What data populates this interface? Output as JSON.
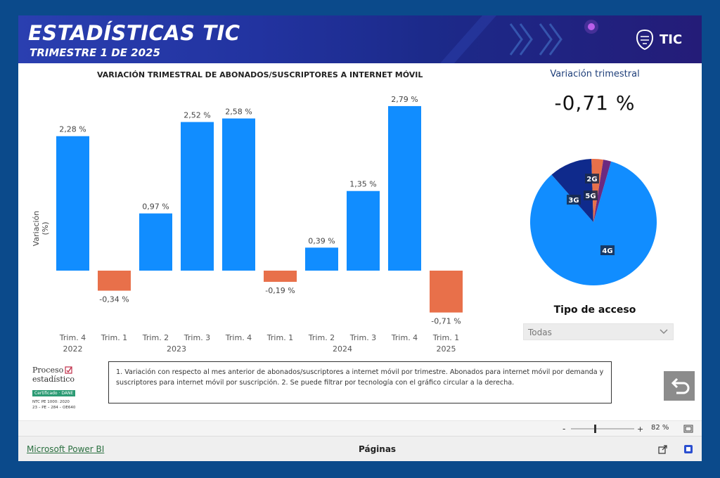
{
  "header": {
    "title": "ESTADÍSTICAS TIC",
    "subtitle": "TRIMESTRE 1 DE 2025",
    "logo_text": "TIC"
  },
  "chart_data": {
    "type": "bar",
    "title": "VARIACIÓN TRIMESTRAL DE ABONADOS/SUSCRIPTORES A INTERNET MÓVIL",
    "ylabel": "Variación (%)",
    "xlabel": "",
    "categories": [
      "Trim. 4",
      "Trim. 1",
      "Trim. 2",
      "Trim. 3",
      "Trim. 4",
      "Trim. 1",
      "Trim. 2",
      "Trim. 3",
      "Trim. 4",
      "Trim. 1"
    ],
    "years": [
      {
        "label": "2022",
        "start": 0,
        "end": 0
      },
      {
        "label": "2023",
        "start": 1,
        "end": 4
      },
      {
        "label": "2024",
        "start": 5,
        "end": 8
      },
      {
        "label": "2025",
        "start": 9,
        "end": 9
      }
    ],
    "values": [
      2.28,
      -0.34,
      0.97,
      2.52,
      2.58,
      -0.19,
      0.39,
      1.35,
      2.79,
      -0.71
    ],
    "labels": [
      "2,28 %",
      "-0,34 %",
      "0,97 %",
      "2,52 %",
      "2,58 %",
      "-0,19 %",
      "0,39 %",
      "1,35 %",
      "2,79 %",
      "-0,71 %"
    ],
    "colors": {
      "positive": "#118dff",
      "negative": "#e8704a"
    }
  },
  "kpi": {
    "label": "Variación trimestral",
    "value": "-0,71 %"
  },
  "pie": {
    "type": "pie",
    "slices": [
      {
        "name": "4G",
        "value": 84,
        "color": "#118dff"
      },
      {
        "name": "3G",
        "value": 11,
        "color": "#0f2a8c"
      },
      {
        "name": "2G",
        "value": 3,
        "color": "#e8704a"
      },
      {
        "name": "5G",
        "value": 2,
        "color": "#6b2a80"
      }
    ]
  },
  "access": {
    "title": "Tipo de acceso",
    "dropdown_value": "Todas"
  },
  "cert": {
    "line1": "Proceso",
    "line2": "estadístico",
    "badge": "Certificado · DANE",
    "ntc": "NTC PE 1000: 2020",
    "code": "23 – PE – 284 – OE640"
  },
  "note": "1. Variación con respecto al mes anterior de abonados/suscriptores a internet móvil por trimestre. Abonados para internet móvil por demanda y suscriptores para internet móvil por suscripción. 2. Se puede filtrar por tecnología con el gráfico circular a la derecha.",
  "zoom": {
    "level": "82 %"
  },
  "footer": {
    "powerbi": "Microsoft Power BI",
    "pages": "Páginas"
  }
}
